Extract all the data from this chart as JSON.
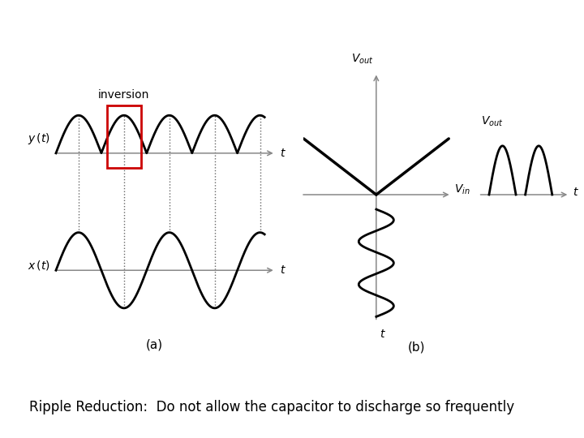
{
  "subtitle": "Ripple Reduction:  Do not allow the capacitor to discharge so frequently",
  "subtitle_fontsize": 12,
  "bg_color": "#ffffff",
  "label_a": "(a)",
  "label_b": "(b)",
  "inversion_label": "inversion",
  "line_color": "#000000",
  "axis_color": "#888888",
  "red_rect_color": "#cc0000",
  "dashed_color": "#666666"
}
